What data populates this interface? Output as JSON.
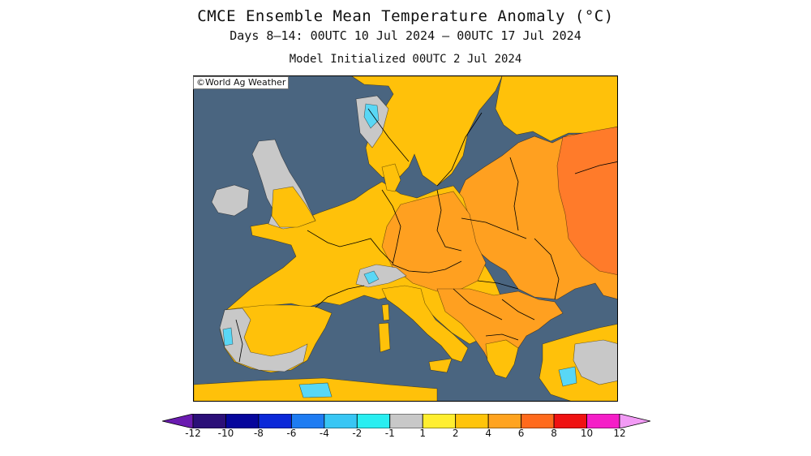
{
  "header": {
    "title": "CMCE Ensemble Mean Temperature Anomaly (°C)",
    "period": "Days 8–14: 00UTC 10 Jul 2024 — 00UTC 17 Jul 2024",
    "init": "Model Initialized 00UTC 2 Jul 2024"
  },
  "map": {
    "credit": "©World Ag Weather",
    "region": "Europe",
    "colors": {
      "sea": "#4a6580",
      "land_neutral": "#c8c8c8",
      "anom_1_2": "#ffe936",
      "anom_2_4": "#ffc10a",
      "anom_4_6": "#ffa020",
      "anom_6_8": "#ff7b2a",
      "anom_m1_m2": "#59d7f5",
      "border": "#000000"
    }
  },
  "colorbar": {
    "ticks": [
      "-12",
      "-10",
      "-8",
      "-6",
      "-4",
      "-2",
      "-1",
      "1",
      "2",
      "4",
      "6",
      "8",
      "10",
      "12"
    ],
    "colors": [
      "#6a1bb0",
      "#2b0f78",
      "#06069c",
      "#0b28d8",
      "#1e7cf2",
      "#38c6f4",
      "#29eef1",
      "#c8c8c8",
      "#ffee30",
      "#ffc40a",
      "#ffa31f",
      "#ff6a1c",
      "#ef1212",
      "#f51ec7",
      "#f29bf5"
    ]
  }
}
